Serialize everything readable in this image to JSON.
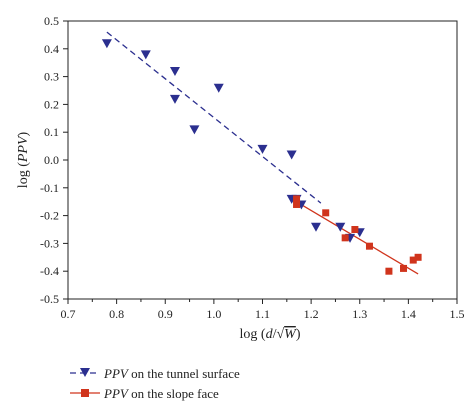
{
  "chart_data": {
    "type": "scatter",
    "xlim": [
      0.7,
      1.5
    ],
    "ylim": [
      -0.5,
      0.5
    ],
    "x_ticks": [
      "0.7",
      "0.8",
      "0.9",
      "1.0",
      "1.1",
      "1.2",
      "1.3",
      "1.4",
      "1.5"
    ],
    "y_ticks": [
      "0.5",
      "0.4",
      "0.3",
      "0.2",
      "0.1",
      "0.0",
      "-0.1",
      "-0.2",
      "-0.3",
      "-0.4",
      "-0.5"
    ],
    "xlabel_prefix": "log (",
    "xlabel_d": "d",
    "xlabel_slash": "/",
    "xlabel_root": "√",
    "xlabel_W": "W",
    "xlabel_suffix": ")",
    "ylabel_prefix": "log (",
    "ylabel_var": "PPV",
    "ylabel_suffix": ")",
    "grid": false,
    "legend_position": "bottom-left",
    "series": [
      {
        "name_var": "PPV",
        "name_rest": " on the tunnel surface",
        "marker": "triangle-down",
        "color": "#2b2f8f",
        "line_style": "dashed",
        "points": [
          [
            0.78,
            0.42
          ],
          [
            0.86,
            0.38
          ],
          [
            0.92,
            0.32
          ],
          [
            0.92,
            0.22
          ],
          [
            0.96,
            0.11
          ],
          [
            1.01,
            0.26
          ],
          [
            1.1,
            0.04
          ],
          [
            1.16,
            0.02
          ],
          [
            1.16,
            -0.14
          ],
          [
            1.17,
            -0.14
          ],
          [
            1.18,
            -0.16
          ],
          [
            1.21,
            -0.24
          ],
          [
            1.26,
            -0.24
          ],
          [
            1.28,
            -0.28
          ],
          [
            1.3,
            -0.26
          ]
        ],
        "fit": [
          [
            0.78,
            0.46
          ],
          [
            1.22,
            -0.155
          ]
        ]
      },
      {
        "name_var": "PPV",
        "name_rest": " on the slope face",
        "marker": "square",
        "color": "#d0341c",
        "line_style": "solid",
        "points": [
          [
            1.17,
            -0.14
          ],
          [
            1.17,
            -0.16
          ],
          [
            1.23,
            -0.19
          ],
          [
            1.27,
            -0.28
          ],
          [
            1.29,
            -0.25
          ],
          [
            1.32,
            -0.31
          ],
          [
            1.36,
            -0.4
          ],
          [
            1.39,
            -0.39
          ],
          [
            1.41,
            -0.36
          ],
          [
            1.42,
            -0.35
          ]
        ],
        "fit": [
          [
            1.16,
            -0.14
          ],
          [
            1.42,
            -0.41
          ]
        ]
      }
    ]
  }
}
